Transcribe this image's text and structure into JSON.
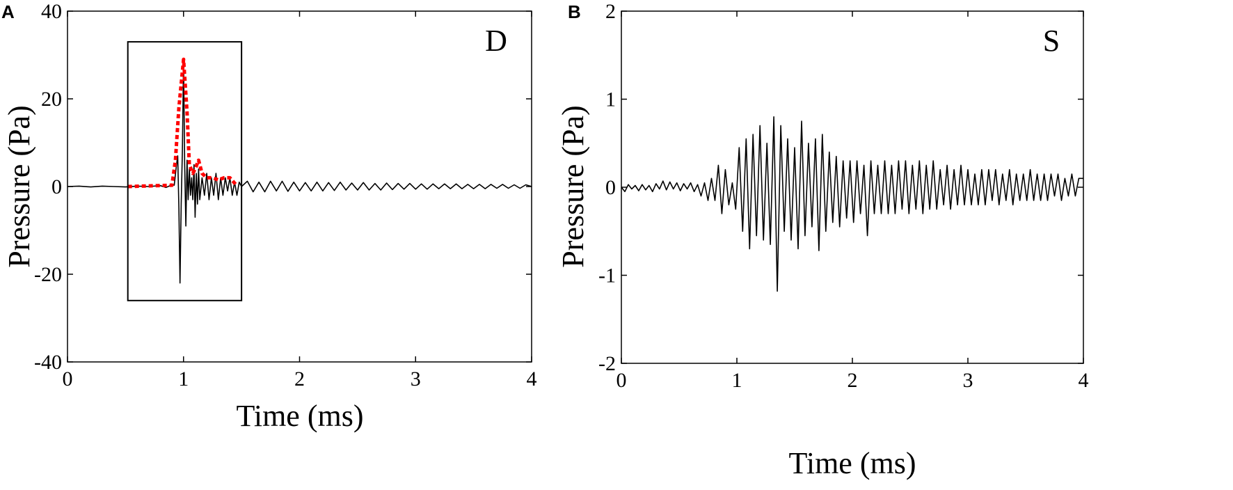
{
  "colors": {
    "trace": "#000000",
    "envelope": "#ff0000",
    "frame": "#000000"
  },
  "chart_data": [
    {
      "type": "line",
      "panel_label": "A",
      "corner_label": "D",
      "xlabel": "Time (ms)",
      "ylabel": "Pressure (Pa)",
      "xlim": [
        0,
        4
      ],
      "ylim": [
        -40,
        40
      ],
      "xticks": [
        0,
        1,
        2,
        3,
        4
      ],
      "xtick_labels": [
        "0",
        "1",
        "2",
        "3",
        "4"
      ],
      "yticks": [
        -40,
        -20,
        0,
        20,
        40
      ],
      "ytick_labels": [
        "-40",
        "-20",
        "0",
        "20",
        "40"
      ],
      "grid": false,
      "annotation_box": {
        "x": [
          0.52,
          1.5
        ],
        "y": [
          -26,
          33
        ]
      },
      "series": [
        {
          "style": "solid",
          "color": "#000000",
          "x": [
            0,
            0.1,
            0.2,
            0.3,
            0.4,
            0.5,
            0.6,
            0.7,
            0.8,
            0.85,
            0.9,
            0.92,
            0.94,
            0.95,
            0.96,
            0.97,
            0.98,
            0.99,
            1.0,
            1.01,
            1.02,
            1.03,
            1.04,
            1.05,
            1.06,
            1.07,
            1.08,
            1.09,
            1.1,
            1.11,
            1.12,
            1.13,
            1.14,
            1.16,
            1.18,
            1.2,
            1.22,
            1.24,
            1.26,
            1.28,
            1.3,
            1.32,
            1.34,
            1.36,
            1.38,
            1.4,
            1.42,
            1.44,
            1.46,
            1.48,
            1.5,
            1.55,
            1.6,
            1.65,
            1.7,
            1.75,
            1.8,
            1.85,
            1.9,
            1.95,
            2.0,
            2.05,
            2.1,
            2.15,
            2.2,
            2.25,
            2.3,
            2.35,
            2.4,
            2.45,
            2.5,
            2.55,
            2.6,
            2.65,
            2.7,
            2.75,
            2.8,
            2.85,
            2.9,
            2.95,
            3.0,
            3.05,
            3.1,
            3.15,
            3.2,
            3.25,
            3.3,
            3.35,
            3.4,
            3.45,
            3.5,
            3.55,
            3.6,
            3.65,
            3.7,
            3.75,
            3.8,
            3.85,
            3.9,
            3.95,
            4.0
          ],
          "y": [
            0,
            0.1,
            -0.1,
            0.1,
            0,
            -0.1,
            0.1,
            0,
            0.2,
            -0.2,
            0.4,
            0.3,
            5,
            7,
            -5,
            -22,
            -4,
            8,
            29,
            5,
            -9,
            6,
            -3,
            4,
            -2,
            2,
            -3,
            5,
            -7,
            3,
            -4,
            4,
            -3,
            2,
            -2,
            3,
            -3,
            2,
            -2,
            3,
            -3,
            2,
            -2,
            2,
            -1,
            2,
            -2,
            1,
            -2,
            1,
            0,
            1.2,
            -1.2,
            1,
            -1.2,
            1.2,
            -1,
            1.2,
            -1.1,
            1,
            -1,
            0.9,
            -1,
            1,
            -1,
            0.9,
            -0.9,
            1,
            -0.8,
            0.8,
            -0.8,
            0.9,
            -0.8,
            0.7,
            -0.8,
            0.8,
            -0.7,
            0.7,
            -0.6,
            0.7,
            -0.6,
            0.6,
            -0.6,
            0.6,
            -0.5,
            0.6,
            -0.5,
            0.6,
            -0.5,
            0.5,
            -0.5,
            0.5,
            -0.5,
            0.5,
            -0.4,
            0.5,
            -0.4,
            0.4,
            -0.4,
            0.4,
            0
          ]
        },
        {
          "style": "dotted",
          "color": "#ff0000",
          "x": [
            0.52,
            0.9,
            0.93,
            0.96,
            1.0,
            1.03,
            1.05,
            1.08,
            1.1,
            1.13,
            1.16,
            1.2,
            1.25,
            1.3,
            1.35,
            1.4,
            1.45
          ],
          "y": [
            0,
            0.3,
            6,
            18,
            29,
            17,
            5,
            3,
            4,
            6,
            3,
            2,
            2,
            1.5,
            2,
            2,
            0.5
          ]
        }
      ]
    },
    {
      "type": "line",
      "panel_label": "B",
      "corner_label": "S",
      "xlabel": "Time (ms)",
      "ylabel": "Pressure (Pa)",
      "xlim": [
        0,
        4
      ],
      "ylim": [
        -2,
        2
      ],
      "xticks": [
        0,
        1,
        2,
        3,
        4
      ],
      "xtick_labels": [
        "0",
        "1",
        "2",
        "3",
        "4"
      ],
      "yticks": [
        -2,
        -1,
        0,
        1,
        2
      ],
      "ytick_labels": [
        "-2",
        "-1",
        "0",
        "1",
        "2"
      ],
      "grid": false,
      "series": [
        {
          "style": "solid",
          "color": "#000000",
          "x": [
            0,
            0.03,
            0.06,
            0.09,
            0.12,
            0.15,
            0.18,
            0.21,
            0.24,
            0.27,
            0.3,
            0.33,
            0.36,
            0.39,
            0.42,
            0.45,
            0.48,
            0.51,
            0.54,
            0.57,
            0.6,
            0.63,
            0.66,
            0.69,
            0.72,
            0.75,
            0.78,
            0.81,
            0.84,
            0.87,
            0.9,
            0.93,
            0.96,
            0.99,
            1.02,
            1.05,
            1.08,
            1.11,
            1.14,
            1.17,
            1.2,
            1.23,
            1.26,
            1.29,
            1.32,
            1.35,
            1.38,
            1.41,
            1.44,
            1.47,
            1.5,
            1.53,
            1.56,
            1.59,
            1.62,
            1.65,
            1.68,
            1.71,
            1.74,
            1.77,
            1.8,
            1.83,
            1.86,
            1.89,
            1.92,
            1.95,
            1.98,
            2.01,
            2.04,
            2.07,
            2.1,
            2.13,
            2.16,
            2.19,
            2.22,
            2.25,
            2.28,
            2.31,
            2.34,
            2.37,
            2.4,
            2.43,
            2.46,
            2.49,
            2.52,
            2.55,
            2.58,
            2.61,
            2.64,
            2.67,
            2.7,
            2.73,
            2.76,
            2.79,
            2.82,
            2.85,
            2.88,
            2.91,
            2.94,
            2.97,
            3.0,
            3.03,
            3.06,
            3.09,
            3.12,
            3.15,
            3.18,
            3.21,
            3.24,
            3.27,
            3.3,
            3.33,
            3.36,
            3.39,
            3.42,
            3.45,
            3.48,
            3.51,
            3.54,
            3.57,
            3.6,
            3.63,
            3.66,
            3.69,
            3.72,
            3.75,
            3.78,
            3.81,
            3.84,
            3.87,
            3.9,
            3.93,
            3.96,
            4.0
          ],
          "y": [
            0,
            -0.05,
            0.03,
            -0.02,
            0.02,
            -0.04,
            0.03,
            -0.03,
            0.02,
            -0.05,
            0.04,
            -0.02,
            0.07,
            -0.03,
            0.06,
            -0.02,
            0.05,
            -0.04,
            0.04,
            -0.02,
            0.05,
            -0.05,
            0.03,
            -0.1,
            0.05,
            -0.15,
            0.1,
            -0.15,
            0.25,
            -0.3,
            0.2,
            -0.2,
            0.05,
            -0.25,
            0.45,
            -0.5,
            0.55,
            -0.7,
            0.6,
            -0.55,
            0.7,
            -0.6,
            0.5,
            -0.65,
            0.8,
            -1.18,
            0.7,
            -0.5,
            0.55,
            -0.6,
            0.45,
            -0.7,
            0.75,
            -0.55,
            0.5,
            -0.45,
            0.55,
            -0.72,
            0.6,
            -0.5,
            0.4,
            -0.4,
            0.35,
            -0.45,
            0.3,
            -0.35,
            0.3,
            -0.4,
            0.3,
            -0.3,
            0.25,
            -0.55,
            0.3,
            -0.3,
            0.25,
            -0.3,
            0.3,
            -0.3,
            0.25,
            -0.3,
            0.3,
            -0.25,
            0.3,
            -0.3,
            0.25,
            -0.25,
            0.3,
            -0.3,
            0.25,
            -0.25,
            0.3,
            -0.25,
            0.2,
            -0.2,
            0.25,
            -0.25,
            0.2,
            -0.2,
            0.25,
            -0.2,
            0.2,
            -0.2,
            0.15,
            -0.2,
            0.2,
            -0.2,
            0.2,
            -0.15,
            0.2,
            -0.2,
            0.15,
            -0.15,
            0.2,
            -0.2,
            0.15,
            -0.15,
            0.15,
            -0.15,
            0.2,
            -0.15,
            0.15,
            -0.15,
            0.15,
            -0.15,
            0.15,
            -0.1,
            0.15,
            -0.15,
            0.1,
            -0.1,
            0.15,
            -0.1,
            0.1,
            0.1
          ]
        }
      ]
    }
  ]
}
